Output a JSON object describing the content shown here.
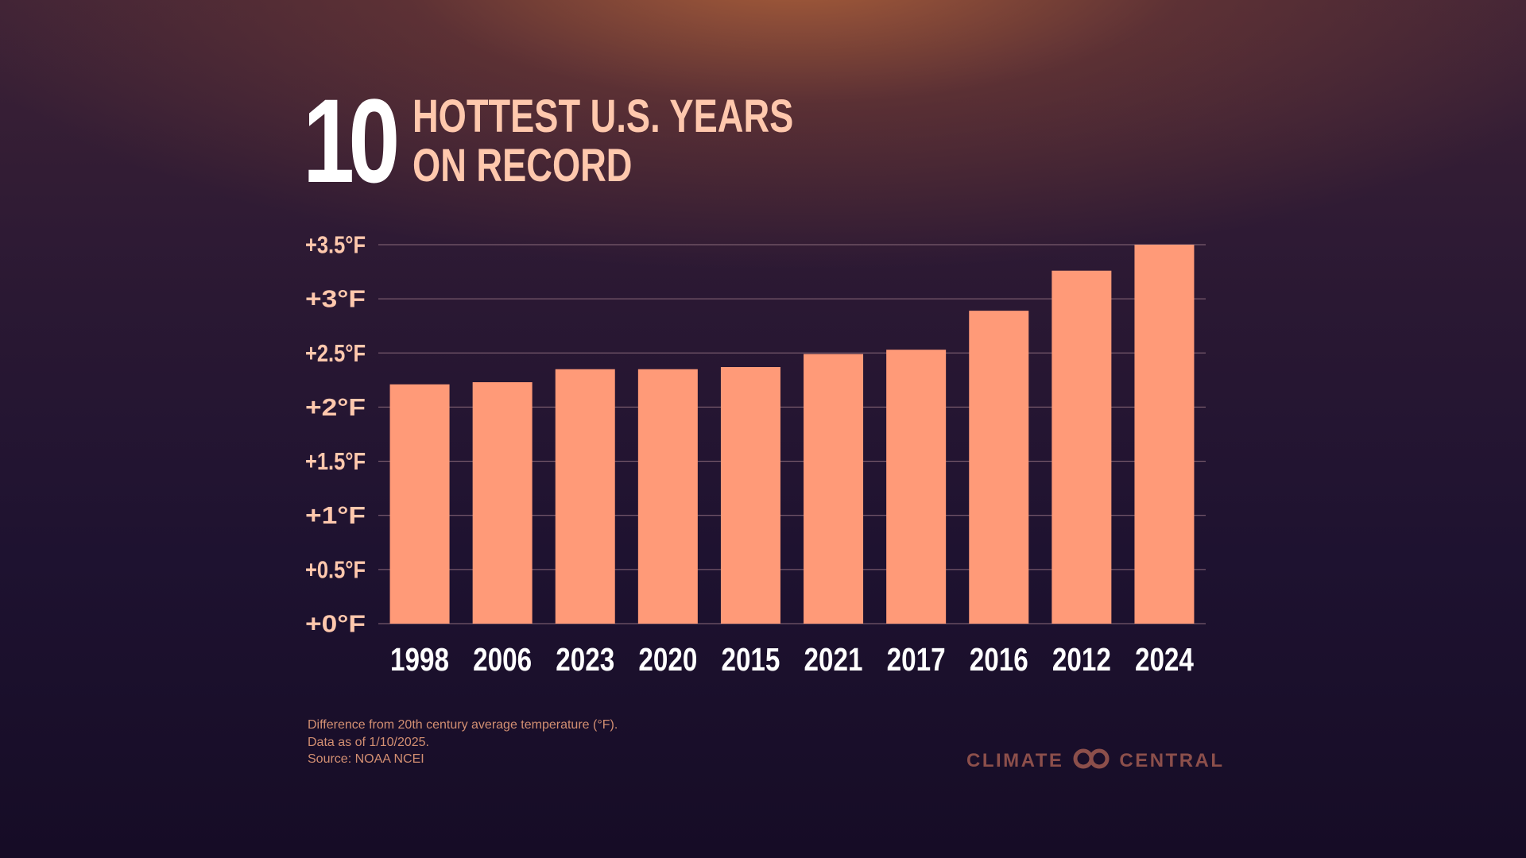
{
  "title": {
    "number": "10",
    "line1": "HOTTEST U.S. YEARS",
    "line2": "ON RECORD"
  },
  "chart_data": {
    "type": "bar",
    "title": "10 HOTTEST U.S. YEARS ON RECORD",
    "xlabel": "",
    "ylabel": "",
    "categories": [
      "1998",
      "2006",
      "2023",
      "2020",
      "2015",
      "2021",
      "2017",
      "2016",
      "2012",
      "2024"
    ],
    "values": [
      2.21,
      2.23,
      2.35,
      2.35,
      2.37,
      2.49,
      2.53,
      2.89,
      3.26,
      3.5
    ],
    "ylim": [
      0,
      3.5
    ],
    "yticks": [
      0,
      0.5,
      1,
      1.5,
      2,
      2.5,
      3,
      3.5
    ],
    "ytick_labels": [
      "+0°F",
      "+0.5°F",
      "+1°F",
      "+1.5°F",
      "+2°F",
      "+2.5°F",
      "+3°F",
      "+3.5°F"
    ],
    "grid": true,
    "legend": "none"
  },
  "colors": {
    "bar": "#ff9a78",
    "tick_label": "#ffc8ad",
    "category_label": "#ffffff",
    "gridline": "#8a6a7a",
    "footnote": "#d38f72",
    "brand": "#8c4f4b"
  },
  "footnote": {
    "line1": "Difference from 20th century average temperature (°F).",
    "line2": "Data as of 1/10/2025.",
    "line3": "Source: NOAA NCEI"
  },
  "brand": {
    "left": "CLIMATE",
    "right": "CENTRAL",
    "icon": "climate-central-logo-icon"
  }
}
